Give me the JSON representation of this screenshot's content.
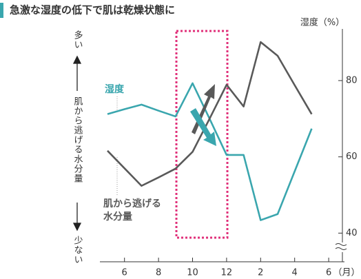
{
  "chart_data": {
    "type": "line",
    "title": "急激な湿度の低下で肌は乾燥状態に",
    "y_axis_label": "湿度（%）",
    "x_axis_unit": "（月）",
    "left_axis_top": "多い",
    "left_axis_label": "肌から逃げる水分量",
    "left_axis_bottom": "少ない",
    "categories": [
      null,
      "6",
      null,
      "8",
      null,
      "10",
      null,
      "12",
      null,
      "2",
      null,
      "4",
      null,
      "6"
    ],
    "ylim": [
      37,
      93
    ],
    "yticks": [
      40,
      60,
      80
    ],
    "series": [
      {
        "name": "湿度",
        "color": "#3aa6ae",
        "values": [
          71.2,
          72.5,
          73.7,
          72.1,
          70.6,
          79.3,
          70,
          60.5,
          60.5,
          43.4,
          45,
          56.2,
          67.4,
          null
        ]
      },
      {
        "label_lines": [
          "肌から逃げる",
          "水分量"
        ],
        "color": "#595959",
        "values": [
          61.6,
          57,
          52.4,
          54.6,
          56.9,
          61.3,
          70,
          78.9,
          73.2,
          90.1,
          86.5,
          78.8,
          71.2,
          null
        ]
      }
    ]
  }
}
